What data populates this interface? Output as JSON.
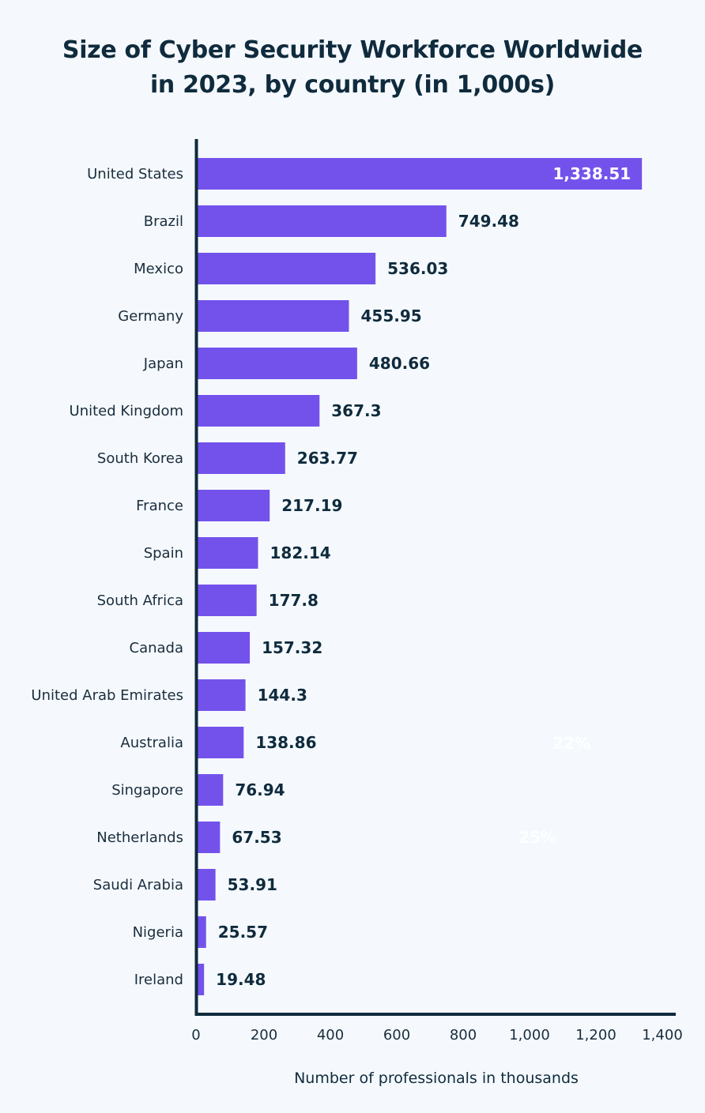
{
  "chart_data": {
    "type": "bar",
    "orientation": "horizontal",
    "title_line1": "Size of Cyber Security Workforce Worldwide",
    "title_line2": "in 2023, by country (in 1,000s)",
    "xlabel": "Number of professionals in thousands",
    "xlim": [
      0,
      1400
    ],
    "xticks": [
      0,
      200,
      400,
      600,
      800,
      1000,
      1200,
      1400
    ],
    "xtick_labels": [
      "0",
      "200",
      "400",
      "600",
      "800",
      "1,000",
      "1,200",
      "1,400"
    ],
    "grid": false,
    "bar_color": "#7352ec",
    "categories": [
      "United States",
      "Brazil",
      "Mexico",
      "Germany",
      "Japan",
      "United Kingdom",
      "South Korea",
      "France",
      "Spain",
      "South Africa",
      "Canada",
      "United Arab Emirates",
      "Australia",
      "Singapore",
      "Netherlands",
      "Saudi Arabia",
      "Nigeria",
      "Ireland"
    ],
    "values": [
      1338.51,
      749.48,
      536.03,
      455.95,
      480.66,
      367.3,
      263.77,
      217.19,
      182.14,
      177.8,
      157.32,
      144.3,
      138.86,
      76.94,
      67.53,
      53.91,
      25.57,
      19.48
    ],
    "value_labels": [
      "1,338.51",
      "749.48",
      "536.03",
      "455.95",
      "480.66",
      "367.3",
      "263.77",
      "217.19",
      "182.14",
      "177.8",
      "157.32",
      "144.3",
      "138.86",
      "76.94",
      "67.53",
      "53.91",
      "25.57",
      "19.48"
    ],
    "annotations": [
      "22%",
      "25%"
    ]
  }
}
